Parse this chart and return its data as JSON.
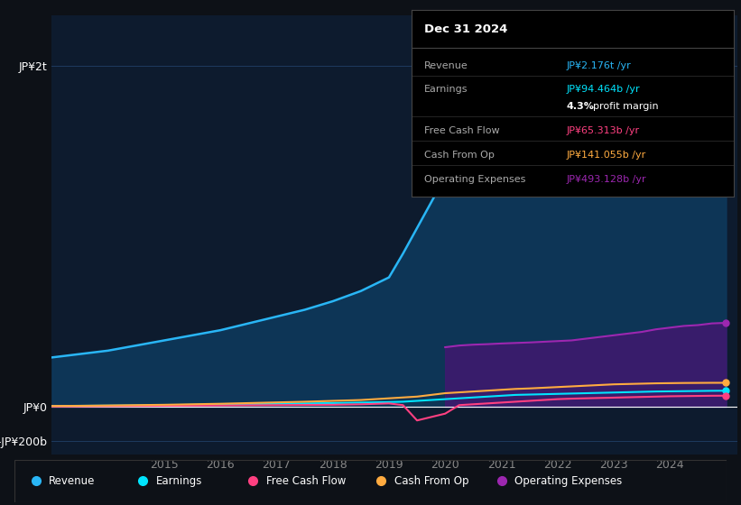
{
  "bg_color": "#0d1117",
  "plot_bg_color": "#0d1b2e",
  "grid_color": "#1e3a5f",
  "years": [
    2013.0,
    2013.5,
    2014.0,
    2014.5,
    2015.0,
    2015.5,
    2016.0,
    2016.5,
    2017.0,
    2017.5,
    2018.0,
    2018.5,
    2019.0,
    2019.25,
    2019.5,
    2019.75,
    2020.0,
    2020.25,
    2020.5,
    2020.75,
    2021.0,
    2021.25,
    2021.5,
    2021.75,
    2022.0,
    2022.25,
    2022.5,
    2022.75,
    2023.0,
    2023.25,
    2023.5,
    2023.75,
    2024.0,
    2024.25,
    2024.5,
    2024.75,
    2025.0
  ],
  "revenue": [
    290,
    310,
    330,
    360,
    390,
    420,
    450,
    490,
    530,
    570,
    620,
    680,
    760,
    900,
    1050,
    1200,
    1350,
    1380,
    1390,
    1400,
    1410,
    1430,
    1460,
    1510,
    1560,
    1620,
    1680,
    1750,
    1820,
    1880,
    1940,
    2000,
    2060,
    2100,
    2130,
    2160,
    2176
  ],
  "earnings": [
    5,
    6,
    7,
    8,
    10,
    12,
    14,
    16,
    18,
    20,
    22,
    25,
    28,
    30,
    35,
    40,
    45,
    50,
    55,
    60,
    65,
    70,
    72,
    74,
    76,
    78,
    80,
    82,
    84,
    86,
    88,
    90,
    91,
    92,
    93,
    94,
    94.464
  ],
  "free_cash_flow": [
    2,
    3,
    4,
    5,
    6,
    7,
    8,
    9,
    10,
    11,
    12,
    15,
    20,
    10,
    -80,
    -60,
    -40,
    10,
    15,
    20,
    25,
    30,
    35,
    40,
    45,
    48,
    50,
    52,
    54,
    56,
    58,
    60,
    62,
    63,
    64,
    65,
    65.313
  ],
  "cash_from_op": [
    5,
    6,
    8,
    10,
    12,
    15,
    18,
    22,
    26,
    30,
    35,
    40,
    50,
    55,
    60,
    70,
    80,
    85,
    90,
    95,
    100,
    105,
    108,
    112,
    116,
    120,
    124,
    128,
    132,
    134,
    136,
    138,
    139,
    140,
    140.5,
    141,
    141.055
  ],
  "op_expenses": [
    null,
    null,
    null,
    null,
    null,
    null,
    null,
    null,
    null,
    null,
    null,
    null,
    null,
    null,
    null,
    null,
    350,
    360,
    365,
    368,
    372,
    375,
    378,
    382,
    386,
    390,
    400,
    410,
    420,
    430,
    440,
    455,
    465,
    475,
    480,
    490,
    493.128
  ],
  "revenue_color": "#29b6f6",
  "revenue_fill_color": "#0d3a5e",
  "earnings_color": "#00e5ff",
  "free_cash_flow_color": "#ff4081",
  "cash_from_op_color": "#ffab40",
  "op_expenses_color": "#9c27b0",
  "op_expenses_fill_color": "#3d1a6e",
  "yticks": [
    -200,
    0,
    2000
  ],
  "ytick_labels": [
    "-JP¥200b",
    "JP¥0",
    "JP¥2t"
  ],
  "xticks": [
    2015,
    2016,
    2017,
    2018,
    2019,
    2020,
    2021,
    2022,
    2023,
    2024
  ],
  "xlim": [
    2013.0,
    2025.2
  ],
  "ylim": [
    -280,
    2300
  ],
  "info_box": {
    "title": "Dec 31 2024",
    "rows": [
      {
        "label": "Revenue",
        "value": "JP¥2.176t /yr",
        "value_color": "#29b6f6"
      },
      {
        "label": "Earnings",
        "value": "JP¥94.464b /yr",
        "value_color": "#00e5ff"
      },
      {
        "label": "",
        "value": "4.3% profit margin",
        "value_color": "#ffffff"
      },
      {
        "label": "Free Cash Flow",
        "value": "JP¥65.313b /yr",
        "value_color": "#ff4081"
      },
      {
        "label": "Cash From Op",
        "value": "JP¥141.055b /yr",
        "value_color": "#ffab40"
      },
      {
        "label": "Operating Expenses",
        "value": "JP¥493.128b /yr",
        "value_color": "#9c27b0"
      }
    ]
  },
  "legend": [
    {
      "label": "Revenue",
      "color": "#29b6f6"
    },
    {
      "label": "Earnings",
      "color": "#00e5ff"
    },
    {
      "label": "Free Cash Flow",
      "color": "#ff4081"
    },
    {
      "label": "Cash From Op",
      "color": "#ffab40"
    },
    {
      "label": "Operating Expenses",
      "color": "#9c27b0"
    }
  ]
}
